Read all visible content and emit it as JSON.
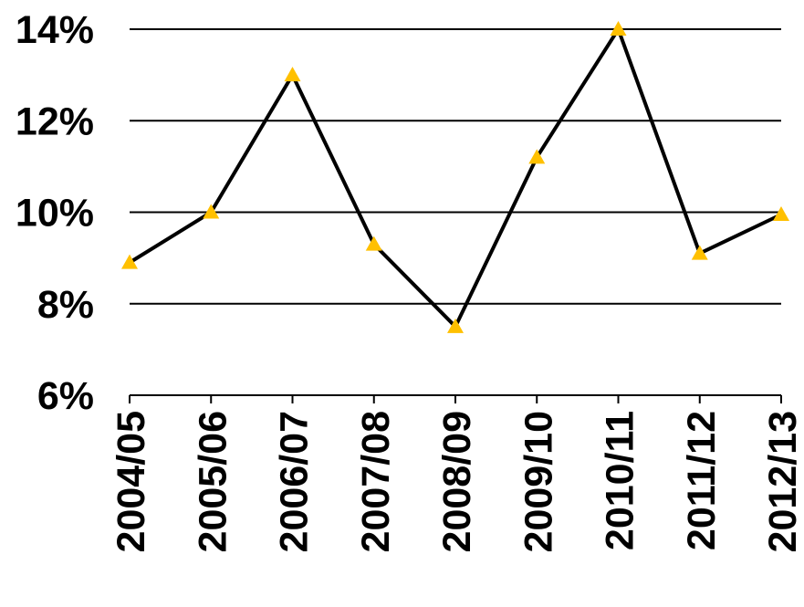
{
  "chart_data": {
    "type": "line",
    "categories": [
      "2004/05",
      "2005/06",
      "2006/07",
      "2007/08",
      "2008/09",
      "2009/10",
      "2010/11",
      "2011/12",
      "2012/13"
    ],
    "series": [
      {
        "values": [
          8.9,
          10.0,
          13.0,
          9.3,
          7.5,
          11.2,
          14.0,
          9.1,
          9.95
        ]
      }
    ],
    "y_ticks": [
      "6%",
      "8%",
      "10%",
      "12%",
      "14%"
    ],
    "ylim": [
      6,
      14
    ],
    "y_unit": "%",
    "grid": true,
    "colors": {
      "line": "#000000",
      "marker": "#FFC000",
      "grid": "#000000"
    },
    "marker": "triangle"
  }
}
